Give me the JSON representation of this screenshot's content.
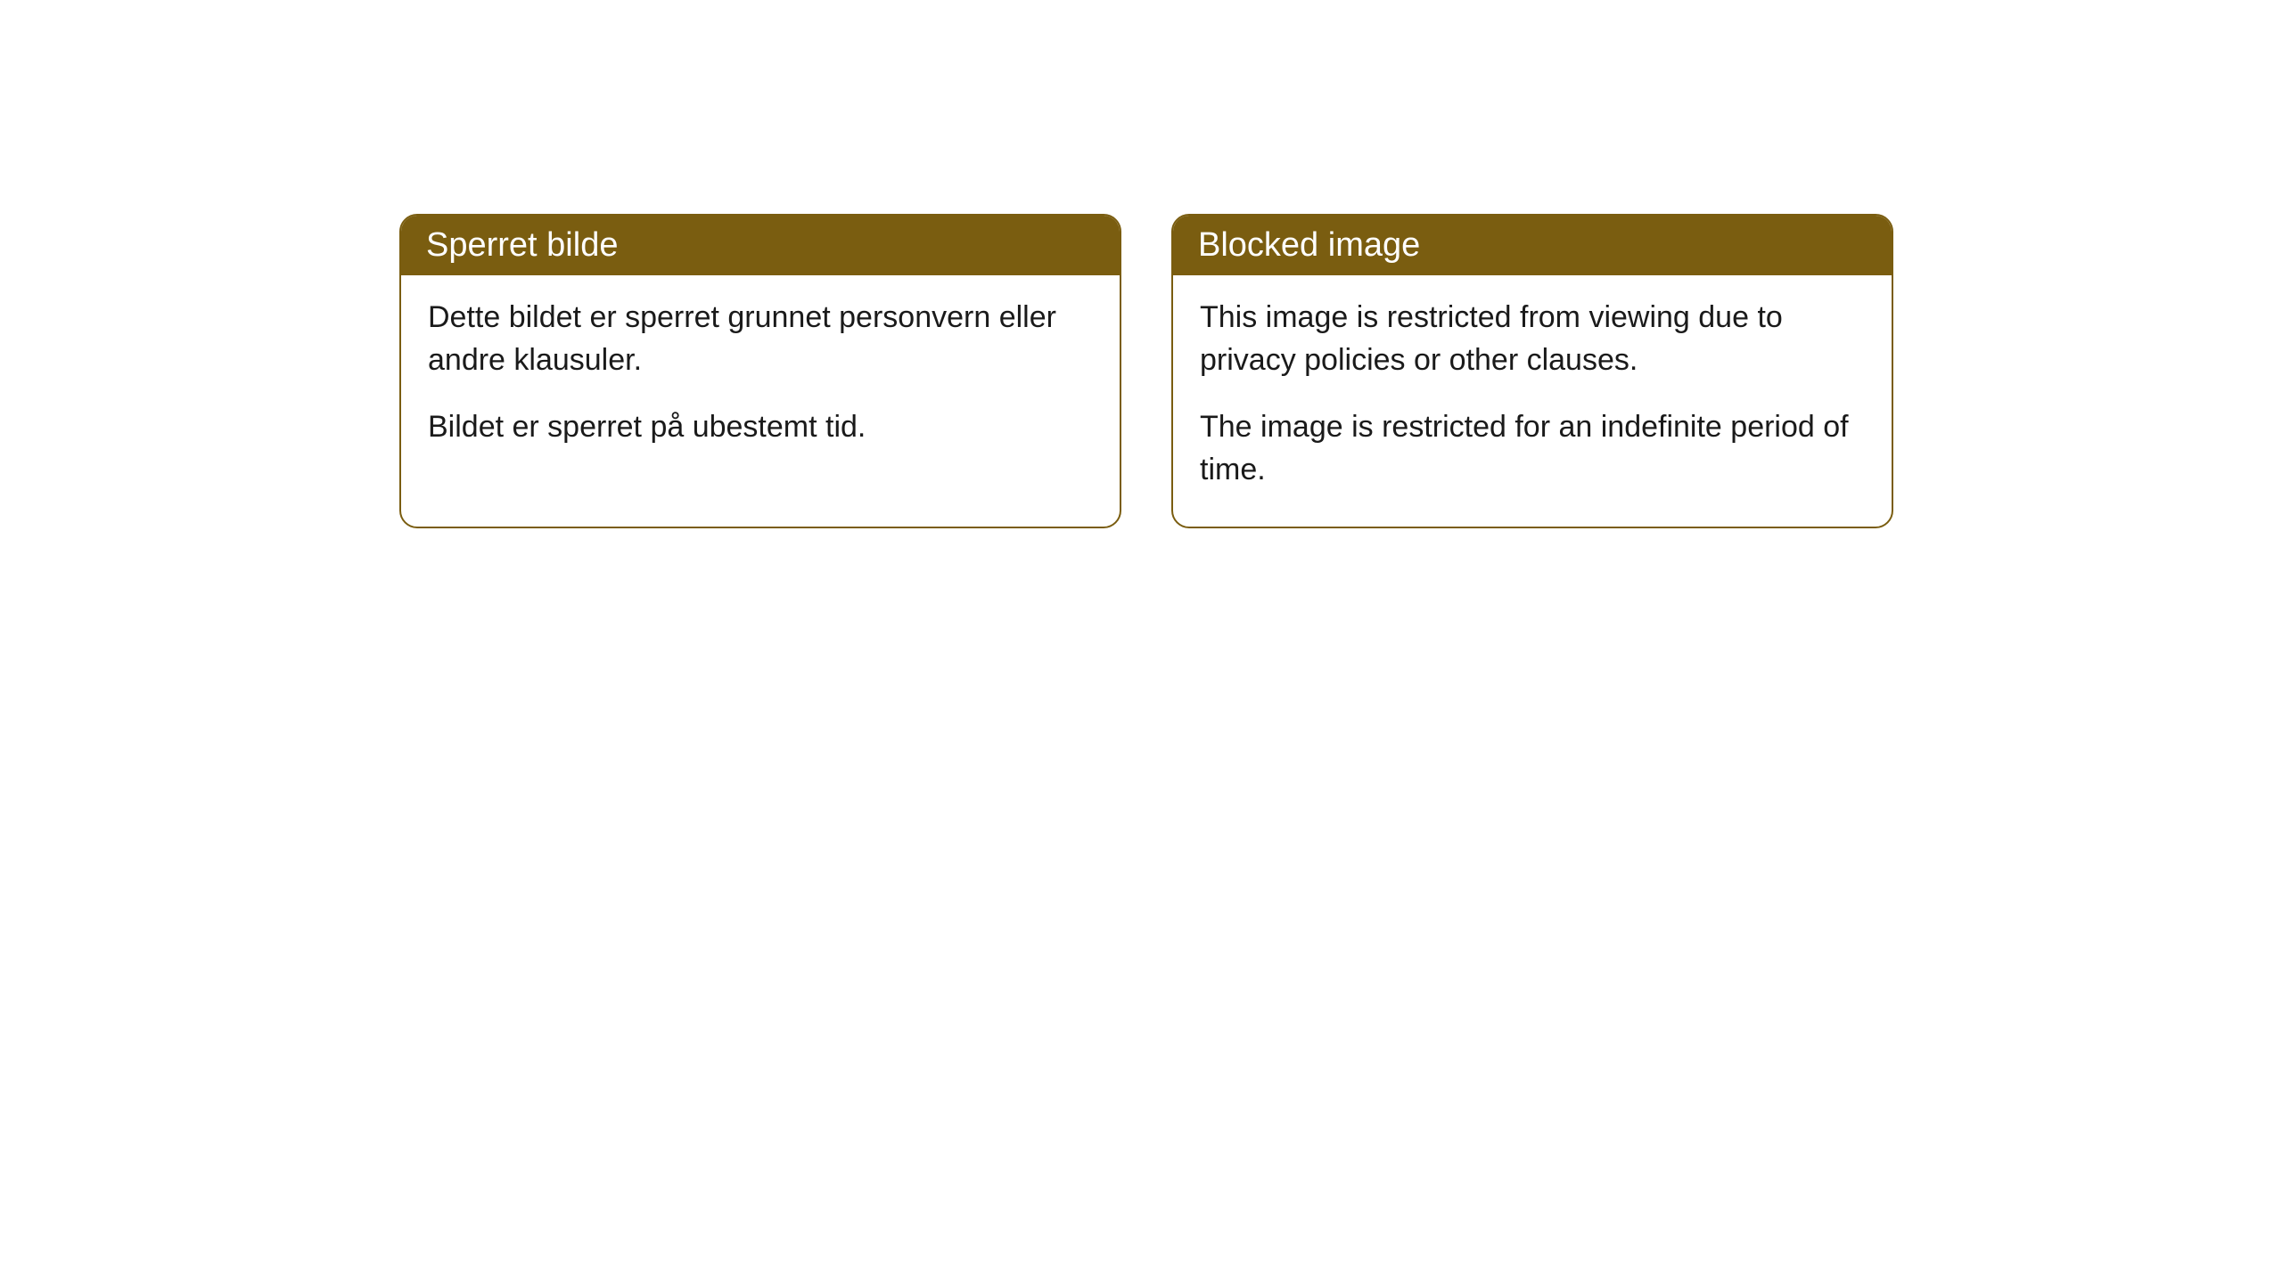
{
  "cards": [
    {
      "title": "Sperret bilde",
      "paragraph1": "Dette bildet er sperret grunnet personvern eller andre klausuler.",
      "paragraph2": "Bildet er sperret på ubestemt tid."
    },
    {
      "title": "Blocked image",
      "paragraph1": "This image is restricted from viewing due to privacy policies or other clauses.",
      "paragraph2": "The image is restricted for an indefinite period of time."
    }
  ],
  "styling": {
    "header_background": "#7a5d10",
    "header_text_color": "#ffffff",
    "border_color": "#7a5d10",
    "body_background": "#ffffff",
    "body_text_color": "#1a1a1a",
    "border_radius": 20,
    "header_fontsize": 38,
    "body_fontsize": 34
  }
}
